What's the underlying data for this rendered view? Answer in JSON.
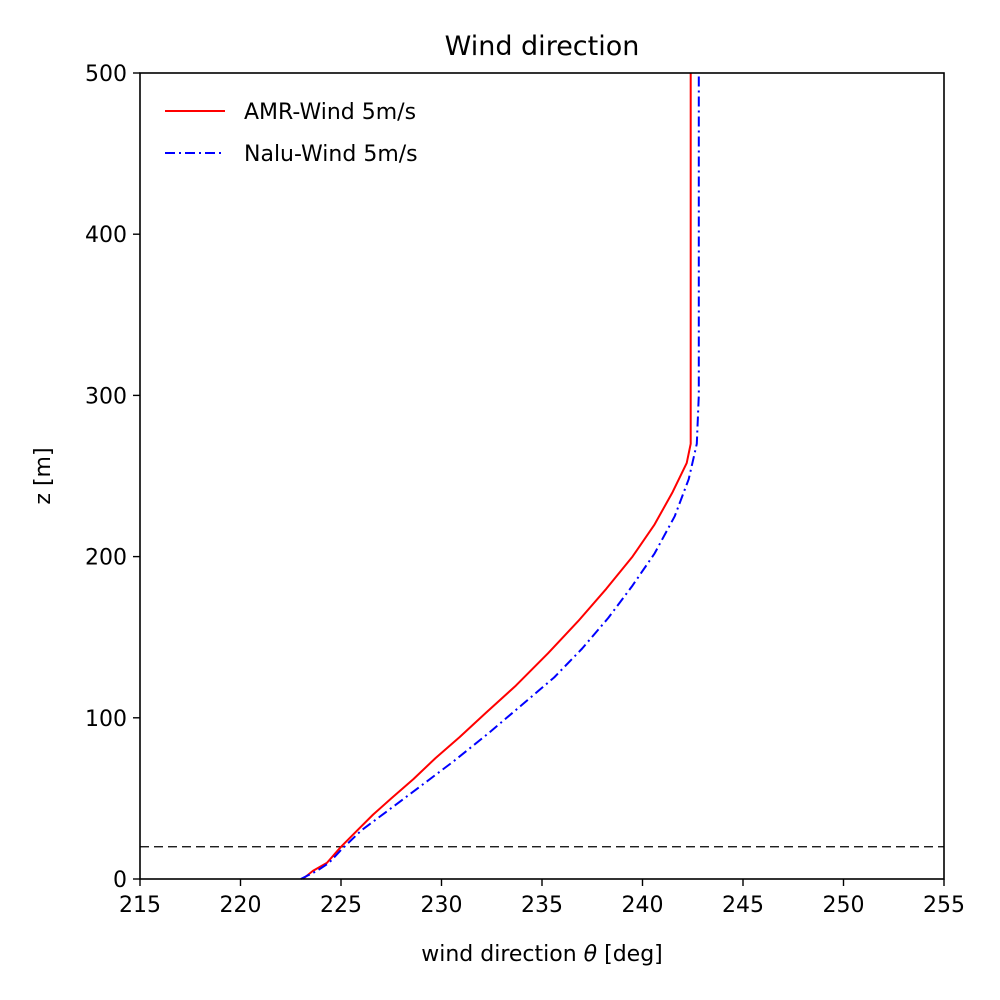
{
  "chart_data": {
    "type": "line",
    "title": "Wind direction",
    "xlabel_prefix": "wind direction ",
    "xlabel_symbol": "θ",
    "xlabel_suffix": " [deg]",
    "ylabel": "z [m]",
    "xlim": [
      215,
      255
    ],
    "ylim": [
      0,
      500
    ],
    "xticks": [
      215,
      220,
      225,
      230,
      235,
      240,
      245,
      250,
      255
    ],
    "yticks": [
      0,
      100,
      200,
      300,
      400,
      500
    ],
    "grid": false,
    "legend_position": "top-left",
    "series": [
      {
        "name": "AMR-Wind 5m/s",
        "color": "#ff0000",
        "style": "solid",
        "points": [
          [
            223.1,
            0
          ],
          [
            223.6,
            5
          ],
          [
            224.3,
            10
          ],
          [
            225.0,
            20
          ],
          [
            225.8,
            30
          ],
          [
            226.6,
            40
          ],
          [
            227.5,
            50
          ],
          [
            228.6,
            62
          ],
          [
            229.7,
            75
          ],
          [
            230.9,
            88
          ],
          [
            232.2,
            103
          ],
          [
            233.7,
            120
          ],
          [
            235.3,
            140
          ],
          [
            236.8,
            160
          ],
          [
            238.2,
            180
          ],
          [
            239.5,
            200
          ],
          [
            240.6,
            220
          ],
          [
            241.5,
            240
          ],
          [
            242.2,
            258
          ],
          [
            242.4,
            270
          ],
          [
            242.4,
            300
          ],
          [
            242.4,
            350
          ],
          [
            242.4,
            400
          ],
          [
            242.4,
            450
          ],
          [
            242.4,
            500
          ]
        ]
      },
      {
        "name": "Nalu-Wind 5m/s",
        "color": "#0000ff",
        "style": "dashdot",
        "points": [
          [
            223.0,
            0
          ],
          [
            223.8,
            5
          ],
          [
            224.4,
            10
          ],
          [
            225.0,
            18
          ],
          [
            226.0,
            30
          ],
          [
            227.5,
            44
          ],
          [
            229.0,
            58
          ],
          [
            230.6,
            73
          ],
          [
            232.3,
            90
          ],
          [
            234.0,
            108
          ],
          [
            235.6,
            125
          ],
          [
            237.0,
            143
          ],
          [
            238.3,
            162
          ],
          [
            239.5,
            182
          ],
          [
            240.6,
            202
          ],
          [
            241.6,
            225
          ],
          [
            242.3,
            248
          ],
          [
            242.7,
            270
          ],
          [
            242.8,
            300
          ],
          [
            242.8,
            350
          ],
          [
            242.8,
            400
          ],
          [
            242.8,
            450
          ],
          [
            242.8,
            500
          ]
        ]
      }
    ],
    "reference_line": {
      "type": "horizontal",
      "y": 20,
      "color": "#000000",
      "style": "dashed"
    }
  }
}
